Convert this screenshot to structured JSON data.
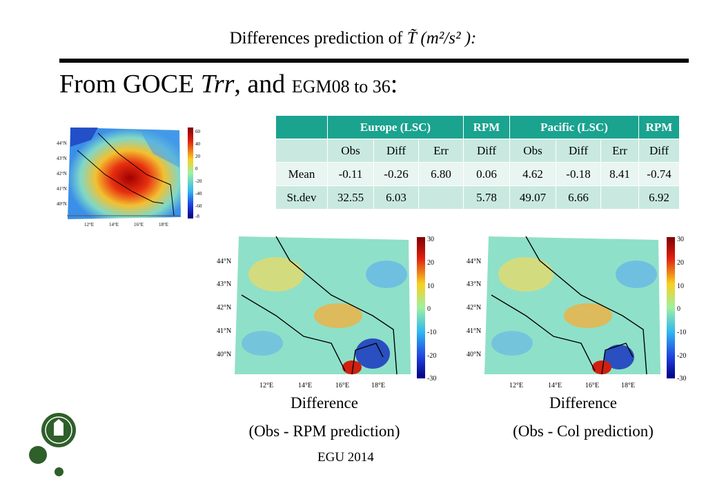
{
  "header": {
    "title_text": "Differences prediction of ",
    "title_symbol": "T̃",
    "title_units": " (m²/s² ):",
    "subtitle_main": "From GOCE ",
    "subtitle_symbol": "Trr",
    "subtitle_mid": ", and ",
    "subtitle_small": "EGM08 to 36",
    "subtitle_end": ":"
  },
  "table": {
    "group_headers": [
      "",
      "Europe (LSC)",
      "RPM",
      "Pacific (LSC)",
      "RPM"
    ],
    "columns": [
      "",
      "Obs",
      "Diff",
      "Err",
      "Diff",
      "Obs",
      "Diff",
      "Err",
      "Diff"
    ],
    "rows": [
      {
        "label": "Mean",
        "cells": [
          "-0.11",
          "-0.26",
          "6.80",
          "0.06",
          "4.62",
          "-0.18",
          "8.41",
          "-0.74"
        ]
      },
      {
        "label": "St.dev",
        "cells": [
          "32.55",
          "6.03",
          "",
          "5.78",
          "49.07",
          "6.66",
          "",
          "6.92"
        ]
      }
    ]
  },
  "maps": {
    "lat_labels": [
      "44°N",
      "43°N",
      "42°N",
      "41°N",
      "40°N"
    ],
    "lon_labels": [
      "12°E",
      "14°E",
      "16°E",
      "18°E"
    ],
    "small_colorbar_ticks": [
      "60",
      "40",
      "20",
      "0",
      "-20",
      "-40",
      "-60",
      "-8"
    ],
    "large_colorbar_ticks": [
      "30",
      "20",
      "10",
      "0",
      "-10",
      "-20",
      "-30"
    ]
  },
  "captions": {
    "left_line1": "Difference",
    "left_line2": "(Obs - RPM prediction)",
    "right_line1": "Difference",
    "right_line2": "(Obs - Col prediction)"
  },
  "footer": "EGU 2014",
  "colors": {
    "table_header": "#1aa38f",
    "table_subheader": "#c9e9e0",
    "logo": "#2f5f2a"
  }
}
